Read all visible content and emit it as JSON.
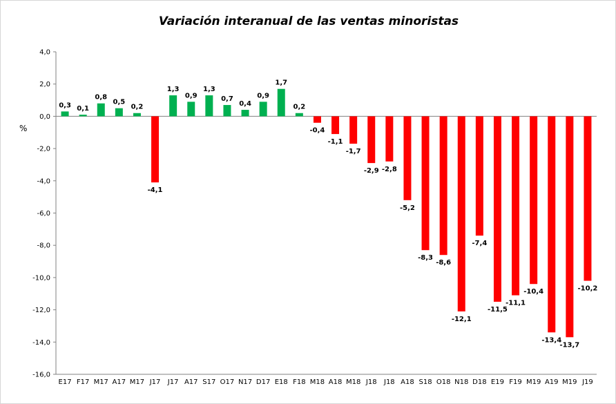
{
  "chart_data": {
    "type": "bar",
    "title": "Variación interanual de las ventas minoristas",
    "ylabel": "%",
    "xlabel": "",
    "ylim": [
      -16,
      4
    ],
    "ytick_step": 2,
    "ytick_labels": [
      "4,0",
      "2,0",
      "0,0",
      "-2,0",
      "-4,0",
      "-6,0",
      "-8,0",
      "-10,0",
      "-12,0",
      "-14,0",
      "-16,0"
    ],
    "grid": false,
    "legend": "none",
    "colors": {
      "positive": "#00b050",
      "negative": "#ff0000"
    },
    "categories": [
      "E17",
      "F17",
      "M17",
      "A17",
      "M17",
      "J17",
      "J17",
      "A17",
      "S17",
      "O17",
      "N17",
      "D17",
      "E18",
      "F18",
      "M18",
      "A18",
      "M18",
      "J18",
      "J18",
      "A18",
      "S18",
      "O18",
      "N18",
      "D18",
      "E19",
      "F19",
      "M19",
      "A19",
      "M19",
      "J19"
    ],
    "values": [
      0.3,
      0.1,
      0.8,
      0.5,
      0.2,
      -4.1,
      1.3,
      0.9,
      1.3,
      0.7,
      0.4,
      0.9,
      1.7,
      0.2,
      -0.4,
      -1.1,
      -1.7,
      -2.9,
      -2.8,
      -5.2,
      -8.3,
      -8.6,
      -12.1,
      -7.4,
      -11.5,
      -11.1,
      -10.4,
      -13.4,
      -13.7,
      -10.2
    ],
    "value_labels": [
      "0,3",
      "0,1",
      "0,8",
      "0,5",
      "0,2",
      "-4,1",
      "1,3",
      "0,9",
      "1,3",
      "0,7",
      "0,4",
      "0,9",
      "1,7",
      "0,2",
      "-0,4",
      "-1,1",
      "-1,7",
      "-2,9",
      "-2,8",
      "-5,2",
      "-8,3",
      "-8,6",
      "-12,1",
      "-7,4",
      "-11,5",
      "-11,1",
      "-10,4",
      "-13,4",
      "-13,7",
      "-10,2"
    ]
  }
}
